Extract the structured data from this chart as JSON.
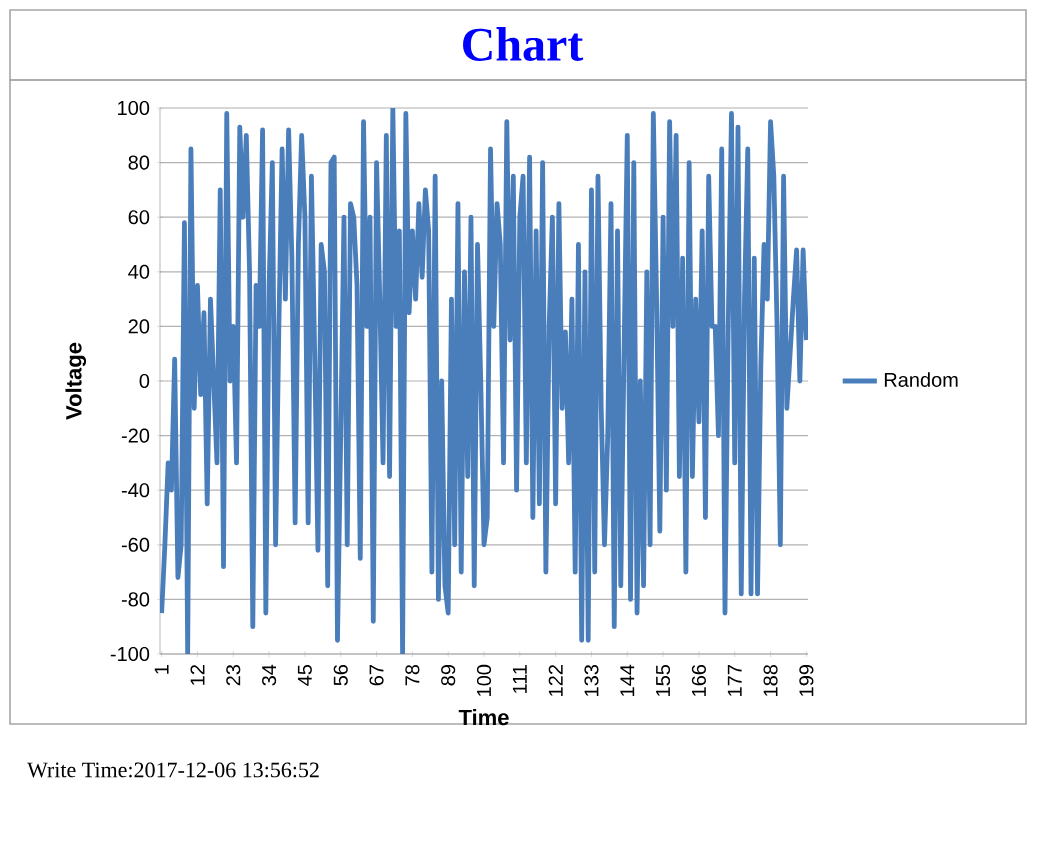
{
  "chart_data": {
    "type": "line",
    "title": "Chart",
    "xlabel": "Time",
    "ylabel": "Voltage",
    "annotations": [
      "Write Time:2017-12-06 13:56:52"
    ],
    "xlim": [
      0.5,
      199.5
    ],
    "ylim": [
      -100,
      100
    ],
    "xticks": [
      1,
      12,
      23,
      34,
      45,
      56,
      67,
      78,
      89,
      100,
      111,
      122,
      133,
      144,
      155,
      166,
      177,
      188,
      199
    ],
    "yticks": [
      -100,
      -80,
      -60,
      -40,
      -20,
      0,
      20,
      40,
      60,
      80,
      100
    ],
    "grid": "y",
    "legend": "right",
    "marker": "none",
    "line_style": "solid",
    "x": [
      1,
      2,
      3,
      4,
      5,
      6,
      7,
      8,
      9,
      10,
      11,
      12,
      13,
      14,
      15,
      16,
      17,
      18,
      19,
      20,
      21,
      22,
      23,
      24,
      25,
      26,
      27,
      28,
      29,
      30,
      31,
      32,
      33,
      34,
      35,
      36,
      37,
      38,
      39,
      40,
      41,
      42,
      43,
      44,
      45,
      46,
      47,
      48,
      49,
      50,
      51,
      52,
      53,
      54,
      55,
      56,
      57,
      58,
      59,
      60,
      61,
      62,
      63,
      64,
      65,
      66,
      67,
      68,
      69,
      70,
      71,
      72,
      73,
      74,
      75,
      76,
      77,
      78,
      79,
      80,
      81,
      82,
      83,
      84,
      85,
      86,
      87,
      88,
      89,
      90,
      91,
      92,
      93,
      94,
      95,
      96,
      97,
      98,
      99,
      100,
      101,
      102,
      103,
      104,
      105,
      106,
      107,
      108,
      109,
      110,
      111,
      112,
      113,
      114,
      115,
      116,
      117,
      118,
      119,
      120,
      121,
      122,
      123,
      124,
      125,
      126,
      127,
      128,
      129,
      130,
      131,
      132,
      133,
      134,
      135,
      136,
      137,
      138,
      139,
      140,
      141,
      142,
      143,
      144,
      145,
      146,
      147,
      148,
      149,
      150,
      151,
      152,
      153,
      154,
      155,
      156,
      157,
      158,
      159,
      160,
      161,
      162,
      163,
      164,
      165,
      166,
      167,
      168,
      169,
      170,
      171,
      172,
      173,
      174,
      175,
      176,
      177,
      178,
      179,
      180,
      181,
      182,
      183,
      184,
      185,
      186,
      187,
      188,
      189,
      190,
      191,
      192,
      193,
      194,
      195,
      196,
      197,
      198,
      199
    ],
    "series": [
      {
        "name": "Random",
        "color": "#4a7ebb",
        "values": [
          -85,
          -60,
          -30,
          -40,
          8,
          -72,
          -60,
          58,
          -100,
          85,
          -10,
          35,
          -5,
          25,
          -45,
          30,
          0,
          -30,
          70,
          -68,
          98,
          0,
          20,
          -30,
          93,
          60,
          90,
          40,
          -90,
          35,
          20,
          92,
          -85,
          35,
          80,
          -60,
          20,
          85,
          30,
          92,
          45,
          -52,
          50,
          90,
          60,
          -52,
          75,
          10,
          -62,
          50,
          40,
          -75,
          80,
          82,
          -95,
          -20,
          60,
          -60,
          65,
          60,
          35,
          -65,
          95,
          20,
          60,
          -88,
          80,
          30,
          -30,
          90,
          -35,
          100,
          20,
          55,
          -100,
          98,
          25,
          55,
          30,
          65,
          38,
          70,
          55,
          -70,
          75,
          -80,
          0,
          -75,
          -85,
          30,
          -60,
          65,
          -70,
          40,
          -35,
          60,
          -75,
          50,
          0,
          -60,
          -50,
          85,
          20,
          65,
          50,
          -30,
          95,
          15,
          75,
          -40,
          60,
          75,
          -30,
          82,
          -50,
          55,
          -45,
          80,
          -70,
          20,
          60,
          -45,
          65,
          -10,
          18,
          -30,
          30,
          -70,
          50,
          -95,
          40,
          -95,
          70,
          -70,
          75,
          -10,
          -60,
          -20,
          65,
          -90,
          55,
          -75,
          10,
          90,
          -80,
          80,
          -85,
          0,
          -75,
          40,
          -60,
          98,
          30,
          -55,
          60,
          -40,
          95,
          20,
          90,
          -35,
          45,
          -70,
          80,
          -35,
          30,
          -15,
          55,
          -50,
          75,
          20,
          20,
          -20,
          85,
          -85,
          20,
          98,
          -30,
          93,
          -78,
          30,
          85,
          -78,
          45,
          -78,
          5,
          50,
          30,
          95,
          75,
          20,
          -60,
          75,
          -10,
          10,
          30,
          48,
          0,
          48,
          15
        ]
      }
    ]
  }
}
